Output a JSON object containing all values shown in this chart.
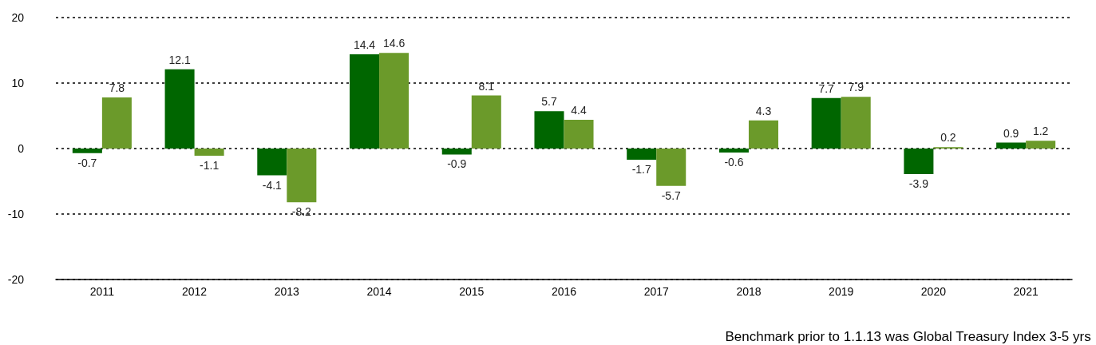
{
  "chart_data": {
    "type": "bar",
    "categories": [
      "2011",
      "2012",
      "2013",
      "2014",
      "2015",
      "2016",
      "2017",
      "2018",
      "2019",
      "2020",
      "2021"
    ],
    "series": [
      {
        "color": "#006600",
        "values": [
          -0.7,
          12.1,
          -4.1,
          14.4,
          -0.9,
          5.7,
          -1.7,
          -0.6,
          7.7,
          -3.9,
          0.9
        ]
      },
      {
        "color": "#6b9a2a",
        "values": [
          7.8,
          -1.1,
          -8.2,
          14.6,
          8.1,
          4.4,
          -5.7,
          4.3,
          7.9,
          0.2,
          1.2
        ]
      }
    ],
    "ylim": [
      -20,
      20
    ],
    "yticks": [
      -20,
      -10,
      0,
      10,
      20
    ],
    "grid": "y",
    "data_labels": true,
    "annotations": [
      "Benchmark prior to 1.1.13 was Global Treasury Index 3-5 yrs"
    ]
  }
}
